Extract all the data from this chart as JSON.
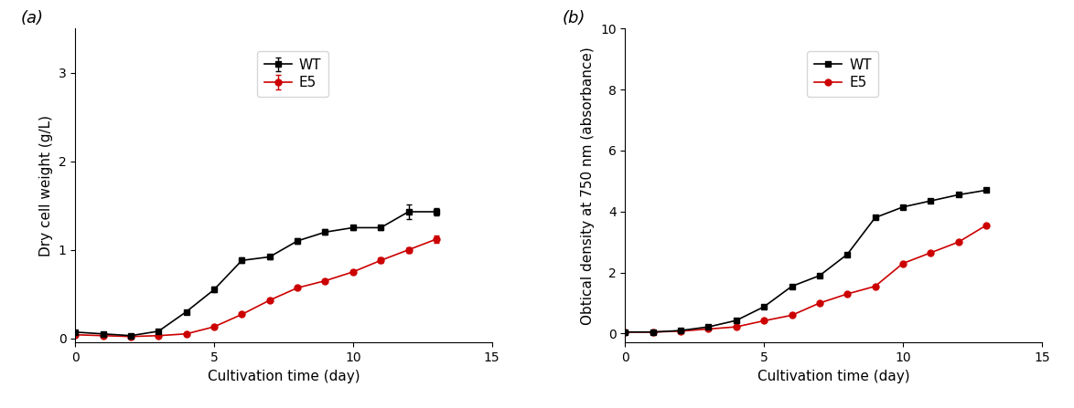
{
  "panel_a": {
    "label": "(a)",
    "xlabel": "Cultivation time (day)",
    "ylabel": "Dry cell weight (g/L)",
    "xlim": [
      0,
      15
    ],
    "ylim": [
      -0.05,
      3.5
    ],
    "yticks": [
      0,
      1,
      2,
      3
    ],
    "xticks": [
      0,
      5,
      10,
      15
    ],
    "WT_x": [
      0,
      1,
      2,
      3,
      4,
      5,
      6,
      7,
      8,
      9,
      10,
      11,
      12,
      13
    ],
    "WT_y": [
      0.07,
      0.05,
      0.03,
      0.08,
      0.3,
      0.55,
      0.88,
      0.92,
      1.1,
      1.2,
      1.25,
      1.25,
      1.43,
      1.43
    ],
    "WT_err": [
      0.01,
      0.01,
      0.01,
      0.01,
      0.02,
      0.03,
      0.03,
      0.03,
      0.03,
      0.03,
      0.03,
      0.03,
      0.08,
      0.04
    ],
    "E5_x": [
      0,
      1,
      2,
      3,
      4,
      5,
      6,
      7,
      8,
      9,
      10,
      11,
      12,
      13
    ],
    "E5_y": [
      0.04,
      0.03,
      0.02,
      0.03,
      0.05,
      0.13,
      0.27,
      0.43,
      0.57,
      0.65,
      0.75,
      0.88,
      1.0,
      1.12
    ],
    "E5_err": [
      0.01,
      0.01,
      0.01,
      0.01,
      0.01,
      0.02,
      0.02,
      0.02,
      0.02,
      0.02,
      0.02,
      0.03,
      0.03,
      0.04
    ]
  },
  "panel_b": {
    "label": "(b)",
    "xlabel": "Cultivation time (day)",
    "ylabel": "Obtical density at 750 nm (absorbance)",
    "xlim": [
      0,
      15
    ],
    "ylim": [
      -0.3,
      10
    ],
    "yticks": [
      0,
      2,
      4,
      6,
      8,
      10
    ],
    "xticks": [
      0,
      5,
      10,
      15
    ],
    "WT_x": [
      0,
      1,
      2,
      3,
      4,
      5,
      6,
      7,
      8,
      9,
      10,
      11,
      12,
      13
    ],
    "WT_y": [
      0.05,
      0.05,
      0.1,
      0.22,
      0.43,
      0.88,
      1.55,
      1.9,
      2.6,
      3.8,
      4.15,
      4.35,
      4.55,
      4.7
    ],
    "E5_x": [
      0,
      1,
      2,
      3,
      4,
      5,
      6,
      7,
      8,
      9,
      10,
      11,
      12,
      13
    ],
    "E5_y": [
      0.05,
      0.05,
      0.08,
      0.15,
      0.22,
      0.42,
      0.6,
      1.0,
      1.3,
      1.55,
      2.3,
      2.65,
      3.0,
      3.55
    ]
  },
  "WT_color": "#000000",
  "E5_color": "#cc0000",
  "bg_color": "#ffffff",
  "fontsize_label": 11,
  "fontsize_tick": 10,
  "fontsize_panel": 13,
  "legend_fontsize": 11
}
